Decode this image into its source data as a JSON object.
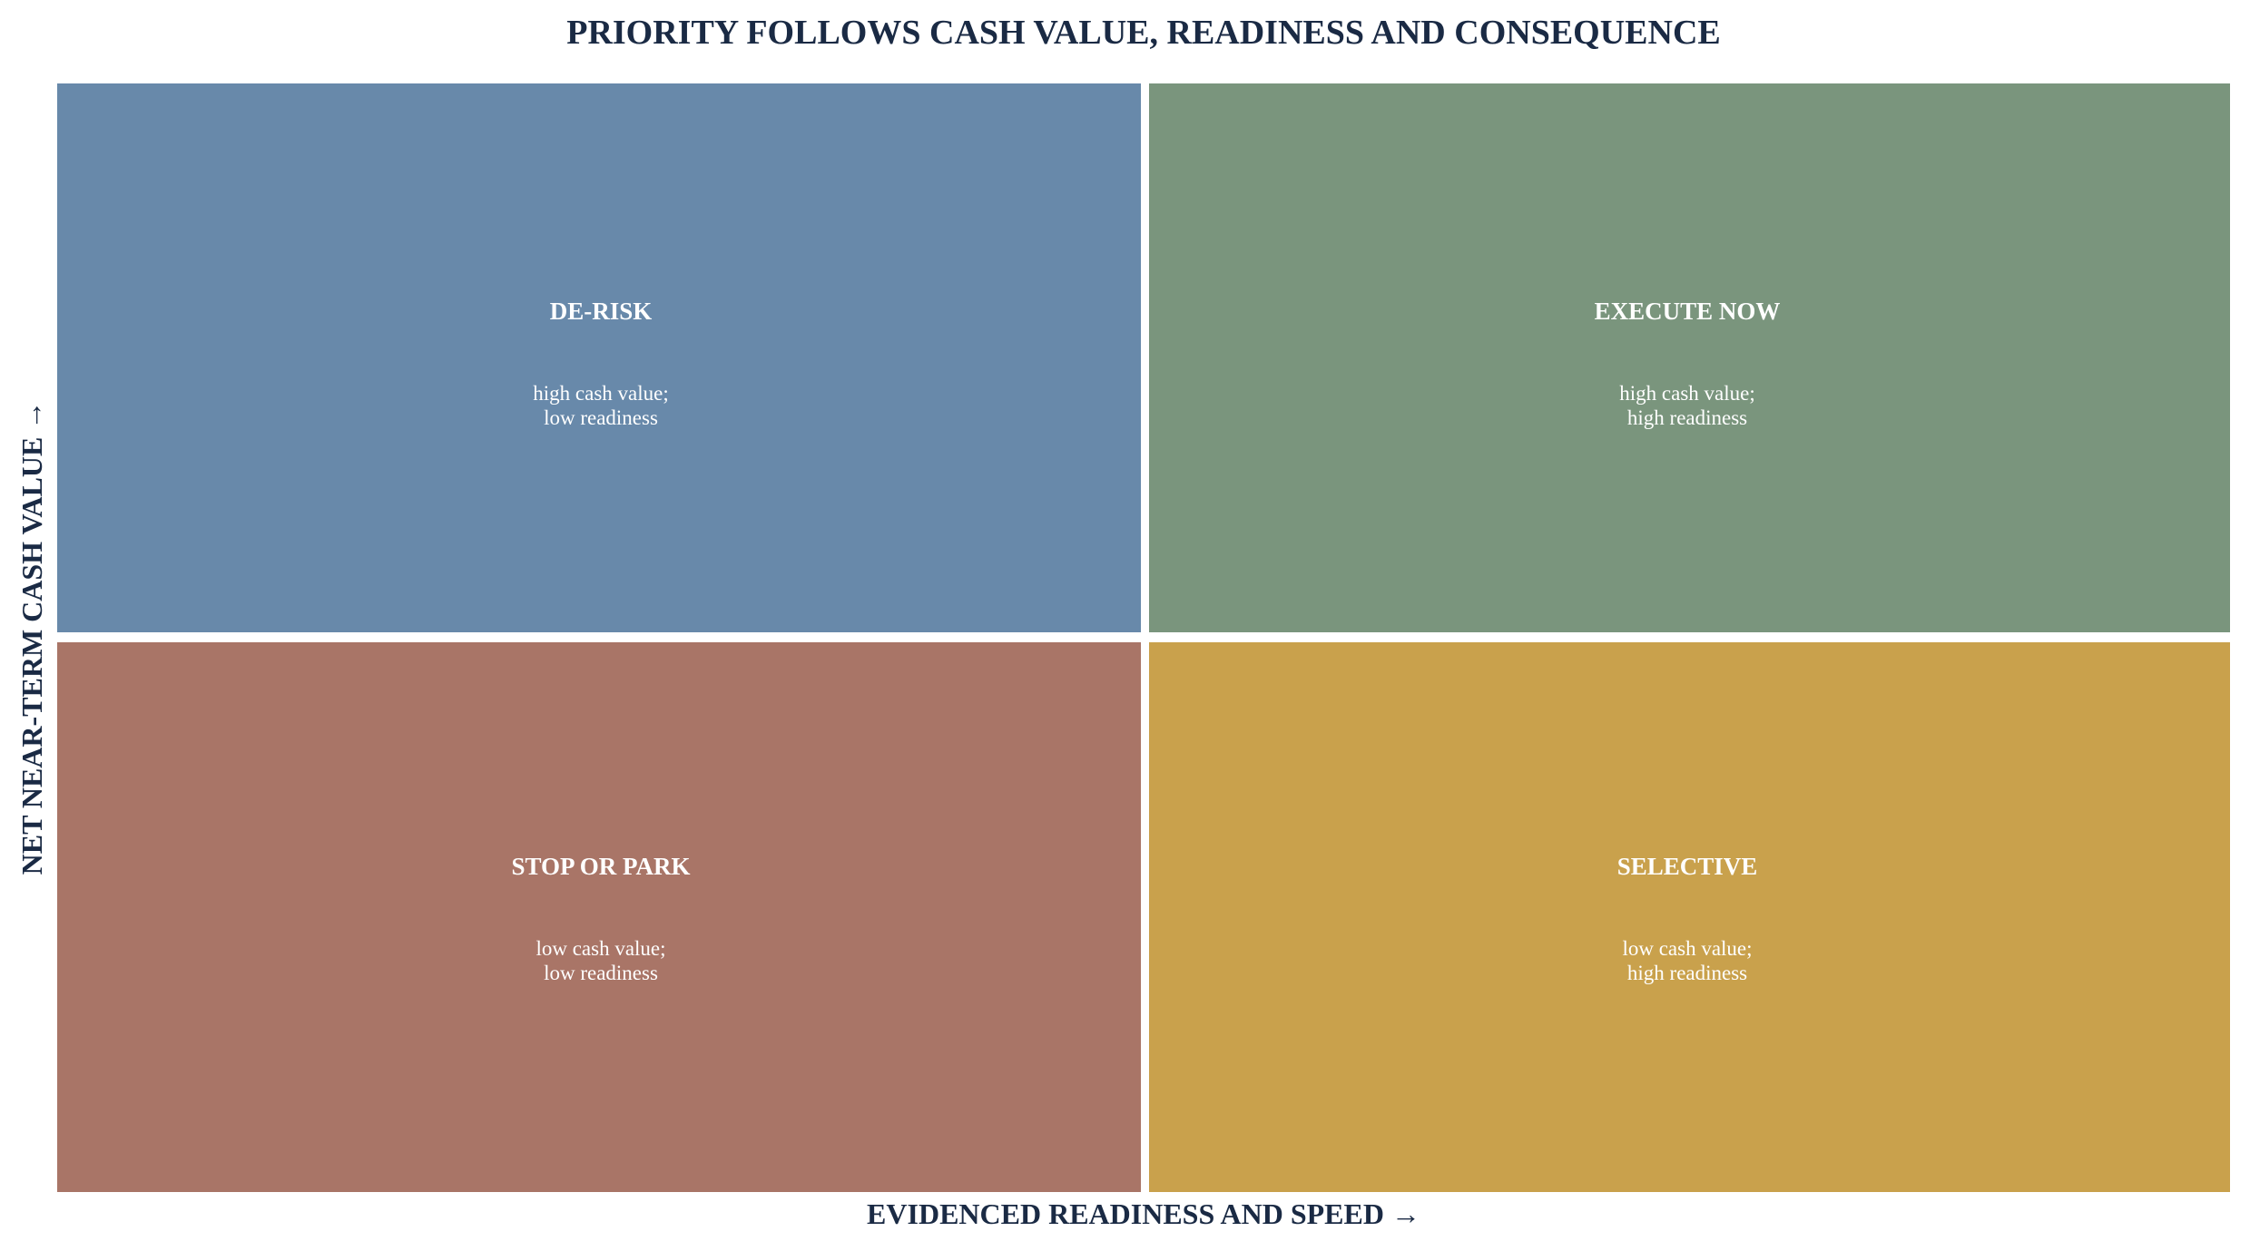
{
  "title": "PRIORITY FOLLOWS CASH VALUE, READINESS AND CONSEQUENCE",
  "x_axis_label": "EVIDENCED READINESS AND SPEED  →",
  "y_axis_label": "NET NEAR-TERM CASH VALUE  →",
  "quadrants": [
    {
      "label": "DE-RISK",
      "description": [
        "high cash value;",
        "low readiness"
      ]
    },
    {
      "label": "EXECUTE NOW",
      "description": [
        "high cash value;",
        "high readiness"
      ]
    },
    {
      "label": "STOP OR PARK",
      "description": [
        "low cash value;",
        "low readiness"
      ]
    },
    {
      "label": "SELECTIVE",
      "description": [
        "low cash value;",
        "high readiness"
      ]
    }
  ]
}
